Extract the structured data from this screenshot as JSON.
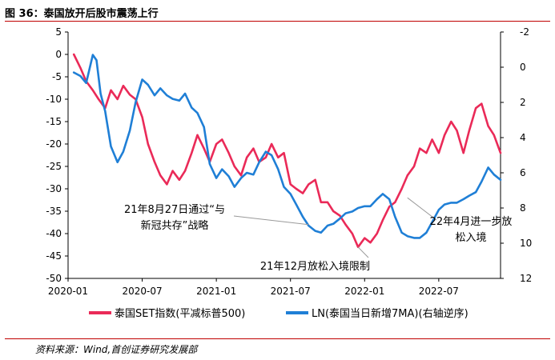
{
  "figure": {
    "title": "图 36：泰国放开后股市震荡上行",
    "source": "资料来源：Wind,首创证券研究发展部"
  },
  "colors": {
    "set": "#ea2a58",
    "ln": "#1f7fd6",
    "axis": "#000000",
    "callout": "#999999",
    "rule": "#c00000"
  },
  "chart_data": {
    "type": "line",
    "x_ticks": [
      "2020-01",
      "2020-07",
      "2021-01",
      "2021-07",
      "2022-01",
      "2022-07"
    ],
    "xlim": [
      "2020-01",
      "2022-12"
    ],
    "y_left": {
      "lim": [
        -50,
        5
      ],
      "ticks": [
        "5",
        "0",
        "-5",
        "-10",
        "-15",
        "-20",
        "-25",
        "-30",
        "-35",
        "-40",
        "-45",
        "-50"
      ]
    },
    "y_right": {
      "lim": [
        -2,
        12
      ],
      "inverted": true,
      "ticks": [
        "-2",
        "0",
        "2",
        "4",
        "6",
        "8",
        "10",
        "12"
      ]
    },
    "series": [
      {
        "name": "泰国SET指数(平减标普500)",
        "axis": "left",
        "x": [
          "2020-01-15",
          "2020-02-01",
          "2020-02-15",
          "2020-03-01",
          "2020-03-15",
          "2020-04-01",
          "2020-04-15",
          "2020-05-01",
          "2020-05-15",
          "2020-06-01",
          "2020-06-15",
          "2020-07-01",
          "2020-07-15",
          "2020-08-01",
          "2020-08-15",
          "2020-09-01",
          "2020-09-15",
          "2020-10-01",
          "2020-10-15",
          "2020-11-01",
          "2020-11-15",
          "2020-12-01",
          "2020-12-15",
          "2021-01-01",
          "2021-01-15",
          "2021-02-01",
          "2021-02-15",
          "2021-03-01",
          "2021-03-15",
          "2021-04-01",
          "2021-04-15",
          "2021-05-01",
          "2021-05-15",
          "2021-06-01",
          "2021-06-15",
          "2021-07-01",
          "2021-07-15",
          "2021-08-01",
          "2021-08-15",
          "2021-09-01",
          "2021-09-15",
          "2021-10-01",
          "2021-10-15",
          "2021-11-01",
          "2021-11-15",
          "2021-12-01",
          "2021-12-15",
          "2022-01-01",
          "2022-01-15",
          "2022-02-01",
          "2022-02-15",
          "2022-03-01",
          "2022-03-15",
          "2022-04-01",
          "2022-04-15",
          "2022-05-01",
          "2022-05-15",
          "2022-06-01",
          "2022-06-15",
          "2022-07-01",
          "2022-07-15",
          "2022-08-01",
          "2022-08-15",
          "2022-09-01",
          "2022-09-15",
          "2022-10-01",
          "2022-10-15",
          "2022-11-01",
          "2022-11-15",
          "2022-12-01"
        ],
        "values": [
          0,
          -3,
          -6,
          -8,
          -10,
          -12,
          -8,
          -10,
          -7,
          -9,
          -10,
          -14,
          -20,
          -24,
          -27,
          -29,
          -26,
          -28,
          -26,
          -22,
          -18,
          -21,
          -24,
          -20,
          -19,
          -22,
          -25,
          -27,
          -23,
          -21,
          -24,
          -23,
          -20,
          -23,
          -22,
          -29,
          -30,
          -31,
          -29,
          -28,
          -33,
          -33,
          -35,
          -36,
          -38,
          -40,
          -43,
          -41,
          -42,
          -40,
          -37,
          -34,
          -33,
          -30,
          -27,
          -25,
          -21,
          -22,
          -19,
          -22,
          -18,
          -15,
          -17,
          -22,
          -17,
          -12,
          -11,
          -16,
          -18,
          -22
        ]
      },
      {
        "name": "LN(泰国当日新增7MA)(右轴逆序)",
        "axis": "right",
        "x": [
          "2020-01-15",
          "2020-02-01",
          "2020-02-15",
          "2020-03-01",
          "2020-03-10",
          "2020-03-20",
          "2020-04-01",
          "2020-04-15",
          "2020-05-01",
          "2020-05-15",
          "2020-06-01",
          "2020-06-15",
          "2020-07-01",
          "2020-07-15",
          "2020-08-01",
          "2020-08-15",
          "2020-09-01",
          "2020-09-15",
          "2020-10-01",
          "2020-10-15",
          "2020-11-01",
          "2020-11-15",
          "2020-12-01",
          "2020-12-15",
          "2021-01-01",
          "2021-01-15",
          "2021-02-01",
          "2021-02-15",
          "2021-03-01",
          "2021-03-15",
          "2021-04-01",
          "2021-04-15",
          "2021-05-01",
          "2021-05-15",
          "2021-06-01",
          "2021-06-15",
          "2021-07-01",
          "2021-07-15",
          "2021-08-01",
          "2021-08-15",
          "2021-09-01",
          "2021-09-15",
          "2021-10-01",
          "2021-10-15",
          "2021-11-01",
          "2021-11-15",
          "2021-12-01",
          "2021-12-15",
          "2022-01-01",
          "2022-01-15",
          "2022-02-01",
          "2022-02-15",
          "2022-03-01",
          "2022-03-15",
          "2022-04-01",
          "2022-04-15",
          "2022-05-01",
          "2022-05-15",
          "2022-06-01",
          "2022-06-15",
          "2022-07-01",
          "2022-07-15",
          "2022-08-01",
          "2022-08-15",
          "2022-09-01",
          "2022-09-15",
          "2022-10-01",
          "2022-10-15",
          "2022-11-01",
          "2022-11-15",
          "2022-12-01"
        ],
        "values": [
          0.3,
          0.5,
          0.9,
          -0.7,
          -0.4,
          1.5,
          2.5,
          4.5,
          5.4,
          4.8,
          3.6,
          2.0,
          0.7,
          1.0,
          1.6,
          1.2,
          1.6,
          1.8,
          1.9,
          1.5,
          2.3,
          2.6,
          3.4,
          5.5,
          6.3,
          5.8,
          6.2,
          6.8,
          6.3,
          6.0,
          6.1,
          5.4,
          4.8,
          5.0,
          5.8,
          6.8,
          7.2,
          7.8,
          8.5,
          9.0,
          9.3,
          9.4,
          9.0,
          8.9,
          8.6,
          8.3,
          8.2,
          8.0,
          7.9,
          7.9,
          7.5,
          7.2,
          7.5,
          8.5,
          9.4,
          9.6,
          9.7,
          9.7,
          9.4,
          8.8,
          8.1,
          7.8,
          7.7,
          7.7,
          7.5,
          7.3,
          7.1,
          6.5,
          5.7,
          6.1,
          6.4
        ]
      }
    ],
    "annotations": [
      {
        "text": [
          "21年8月27日通过“与",
          "新冠共存”战略"
        ],
        "point": {
          "x": "2021-08-15",
          "axis": "left",
          "y": -38
        }
      },
      {
        "text": [
          "21年12月放松入境限制"
        ],
        "point": {
          "x": "2021-12-15",
          "axis": "left",
          "y": -43
        }
      },
      {
        "text": [
          "22年4月进一步放",
          "松入境"
        ],
        "point": {
          "x": "2022-04-15",
          "axis": "left",
          "y": -32
        }
      }
    ],
    "legend_position": "bottom",
    "grid": false
  }
}
